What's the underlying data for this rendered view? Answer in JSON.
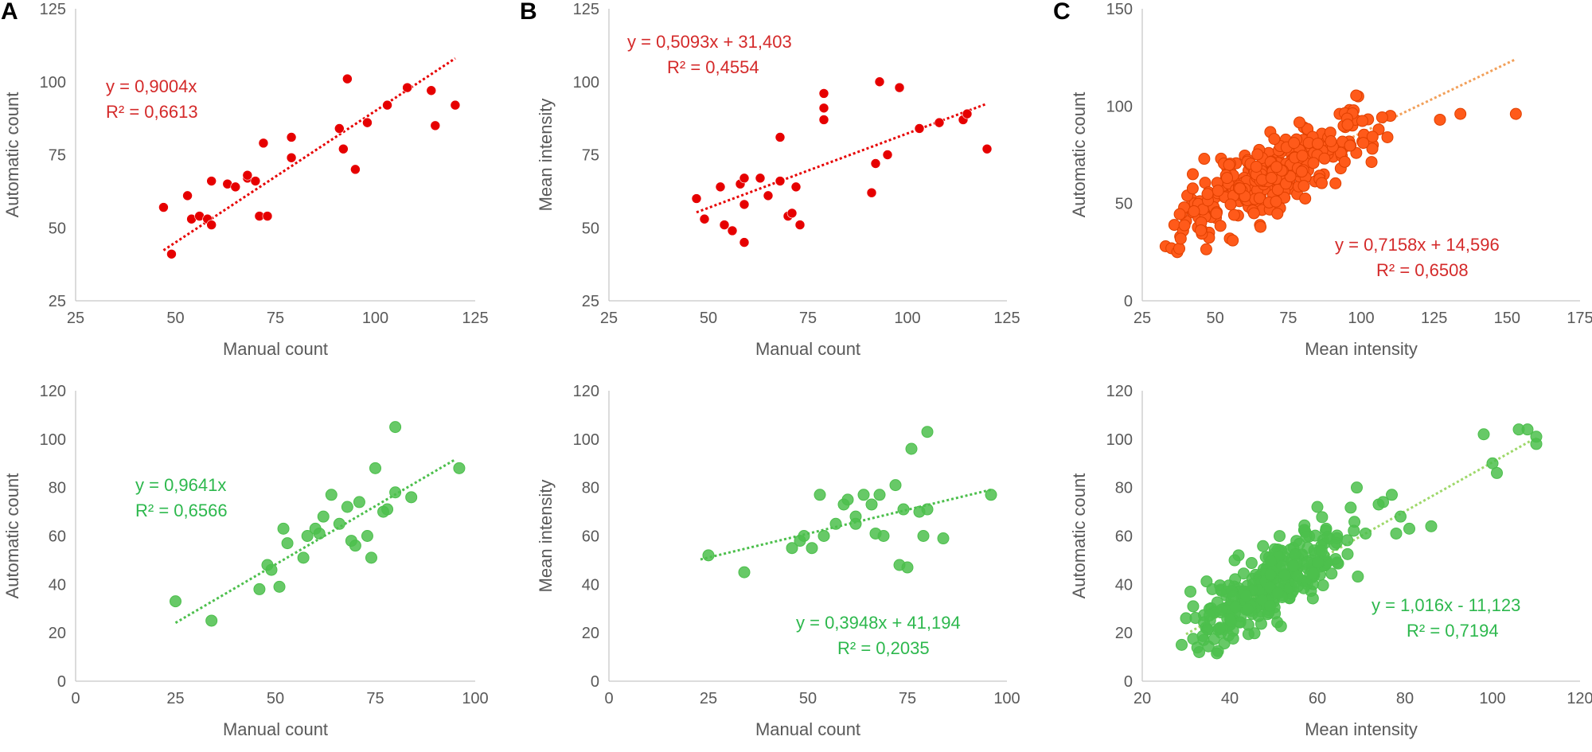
{
  "panel_letters": [
    "A",
    "B",
    "C"
  ],
  "colors": {
    "red": "#e60000",
    "red_text": "#d42a2a",
    "green": "#4cbf4c",
    "green_text": "#2db84d",
    "orange": "#ff5a1a",
    "orange_edge": "#e04000",
    "orange_trend": "#f2a05a",
    "green_trend": "#9ed86a",
    "axis": "#c8c8c8",
    "tick_text": "#595959"
  },
  "chart_data": [
    {
      "type": "scatter",
      "panel": "A",
      "row": "top",
      "xlabel": "Manual count",
      "ylabel": "Automatic count",
      "xlim": [
        25,
        125
      ],
      "ylim": [
        25,
        125
      ],
      "xticks": [
        "25",
        "50",
        "75",
        "100",
        "125"
      ],
      "yticks": [
        "25",
        "50",
        "75",
        "100",
        "125"
      ],
      "color": "red",
      "trend_color": "red",
      "text_color": "red_text",
      "equation": "y = 0,9004x",
      "r2": "R² = 0,6613",
      "trendline": [
        [
          47,
          42.3
        ],
        [
          120,
          108.0
        ]
      ],
      "points": [
        [
          47,
          57
        ],
        [
          49,
          41
        ],
        [
          53,
          61
        ],
        [
          54,
          53
        ],
        [
          56,
          54
        ],
        [
          58,
          53
        ],
        [
          59,
          51
        ],
        [
          59,
          66
        ],
        [
          63,
          65
        ],
        [
          65,
          64
        ],
        [
          68,
          67
        ],
        [
          68,
          68
        ],
        [
          70,
          66
        ],
        [
          71,
          54
        ],
        [
          72,
          79
        ],
        [
          73,
          54
        ],
        [
          79,
          81
        ],
        [
          79,
          74
        ],
        [
          91,
          84
        ],
        [
          92,
          77
        ],
        [
          93,
          101
        ],
        [
          95,
          70
        ],
        [
          98,
          86
        ],
        [
          103,
          92
        ],
        [
          108,
          98
        ],
        [
          114,
          97
        ],
        [
          115,
          85
        ],
        [
          120,
          92
        ]
      ]
    },
    {
      "type": "scatter",
      "panel": "B",
      "row": "top",
      "xlabel": "Manual count",
      "ylabel": "Mean intensity",
      "xlim": [
        25,
        125
      ],
      "ylim": [
        25,
        125
      ],
      "xticks": [
        "25",
        "50",
        "75",
        "100",
        "125"
      ],
      "yticks": [
        "25",
        "50",
        "75",
        "100",
        "125"
      ],
      "color": "red",
      "trend_color": "red",
      "text_color": "red_text",
      "equation": "y = 0,5093x + 31,403",
      "r2": "R² = 0,4554",
      "trendline": [
        [
          47,
          55.3
        ],
        [
          120,
          92.5
        ]
      ],
      "points": [
        [
          47,
          60
        ],
        [
          49,
          53
        ],
        [
          53,
          64
        ],
        [
          54,
          51
        ],
        [
          56,
          49
        ],
        [
          58,
          65
        ],
        [
          59,
          67
        ],
        [
          59,
          58
        ],
        [
          59,
          45
        ],
        [
          63,
          67
        ],
        [
          65,
          61
        ],
        [
          68,
          66
        ],
        [
          68,
          81
        ],
        [
          70,
          54
        ],
        [
          71,
          55
        ],
        [
          72,
          64
        ],
        [
          73,
          51
        ],
        [
          79,
          96
        ],
        [
          79,
          91
        ],
        [
          79,
          87
        ],
        [
          91,
          62
        ],
        [
          92,
          72
        ],
        [
          93,
          100
        ],
        [
          95,
          75
        ],
        [
          98,
          98
        ],
        [
          103,
          84
        ],
        [
          108,
          86
        ],
        [
          114,
          87
        ],
        [
          115,
          89
        ],
        [
          120,
          77
        ]
      ]
    },
    {
      "type": "scatter",
      "panel": "C",
      "row": "top",
      "xlabel": "Mean intensity",
      "ylabel": "Automatic count",
      "xlim": [
        25,
        175
      ],
      "ylim": [
        0,
        150
      ],
      "xticks": [
        "25",
        "50",
        "75",
        "100",
        "125",
        "150",
        "175"
      ],
      "yticks": [
        "0",
        "50",
        "100",
        "150"
      ],
      "color": "orange",
      "edge": "orange_edge",
      "trend_color": "orange_trend",
      "text_color": "red_text",
      "equation": "y = 0,7158x + 14,596",
      "r2": "R² = 0,6508",
      "trendline": [
        [
          35,
          39.7
        ],
        [
          153,
          124.1
        ]
      ],
      "cluster": {
        "n": 330,
        "seed": 17,
        "xmin": 34,
        "xmax": 110,
        "xmode": 66,
        "slope": 0.7158,
        "intercept": 14.596,
        "sd": 8.5,
        "ymin": 25,
        "ymax": 108
      },
      "points": [
        [
          33,
          28
        ],
        [
          35,
          27
        ],
        [
          36,
          39
        ],
        [
          37,
          25
        ],
        [
          38,
          33
        ],
        [
          39,
          36
        ],
        [
          40,
          41
        ],
        [
          42,
          52
        ],
        [
          43,
          50
        ],
        [
          44,
          46
        ],
        [
          52,
          73
        ],
        [
          55,
          32
        ],
        [
          56,
          31
        ],
        [
          93,
          68
        ],
        [
          97,
          90
        ],
        [
          98,
          93
        ],
        [
          99,
          105
        ],
        [
          104,
          80
        ],
        [
          106,
          88
        ],
        [
          109,
          84
        ],
        [
          110,
          95
        ],
        [
          127,
          93
        ],
        [
          134,
          96
        ],
        [
          153,
          96
        ]
      ]
    },
    {
      "type": "scatter",
      "panel": "A",
      "row": "bottom",
      "xlabel": "Manual count",
      "ylabel": "Automatic count",
      "xlim": [
        0,
        100
      ],
      "ylim": [
        0,
        120
      ],
      "xticks": [
        "0",
        "25",
        "50",
        "75",
        "100"
      ],
      "yticks": [
        "0",
        "20",
        "40",
        "60",
        "80",
        "100",
        "120"
      ],
      "color": "green",
      "trend_color": "green",
      "text_color": "green_text",
      "equation": "y = 0,9641x",
      "r2": "R² = 0,6566",
      "trendline": [
        [
          25,
          24.1
        ],
        [
          95,
          91.6
        ]
      ],
      "points": [
        [
          25,
          33
        ],
        [
          34,
          25
        ],
        [
          46,
          38
        ],
        [
          48,
          48
        ],
        [
          49,
          46
        ],
        [
          51,
          39
        ],
        [
          52,
          63
        ],
        [
          53,
          57
        ],
        [
          57,
          51
        ],
        [
          58,
          60
        ],
        [
          60,
          63
        ],
        [
          61,
          61
        ],
        [
          62,
          68
        ],
        [
          64,
          77
        ],
        [
          66,
          65
        ],
        [
          68,
          72
        ],
        [
          69,
          58
        ],
        [
          70,
          56
        ],
        [
          71,
          74
        ],
        [
          73,
          60
        ],
        [
          74,
          51
        ],
        [
          75,
          88
        ],
        [
          77,
          70
        ],
        [
          78,
          71
        ],
        [
          80,
          105
        ],
        [
          80,
          78
        ],
        [
          84,
          76
        ],
        [
          96,
          88
        ]
      ]
    },
    {
      "type": "scatter",
      "panel": "B",
      "row": "bottom",
      "xlabel": "Manual count",
      "ylabel": "Mean intensity",
      "xlim": [
        0,
        100
      ],
      "ylim": [
        0,
        120
      ],
      "xticks": [
        "0",
        "25",
        "50",
        "75",
        "100"
      ],
      "yticks": [
        "0",
        "20",
        "40",
        "60",
        "80",
        "100",
        "120"
      ],
      "color": "green",
      "trend_color": "green",
      "text_color": "green_text",
      "equation": "y = 0,3948x + 41,194",
      "r2": "R² = 0,2035",
      "trendline": [
        [
          23,
          50.3
        ],
        [
          96,
          79.1
        ]
      ],
      "points": [
        [
          25,
          52
        ],
        [
          34,
          45
        ],
        [
          46,
          55
        ],
        [
          48,
          58
        ],
        [
          49,
          60
        ],
        [
          51,
          55
        ],
        [
          53,
          77
        ],
        [
          54,
          60
        ],
        [
          57,
          65
        ],
        [
          59,
          73
        ],
        [
          60,
          75
        ],
        [
          62,
          68
        ],
        [
          62,
          65
        ],
        [
          64,
          77
        ],
        [
          66,
          73
        ],
        [
          67,
          61
        ],
        [
          68,
          77
        ],
        [
          69,
          60
        ],
        [
          72,
          81
        ],
        [
          73,
          48
        ],
        [
          74,
          71
        ],
        [
          75,
          47
        ],
        [
          76,
          96
        ],
        [
          78,
          70
        ],
        [
          79,
          60
        ],
        [
          80,
          103
        ],
        [
          80,
          71
        ],
        [
          84,
          59
        ],
        [
          96,
          77
        ]
      ]
    },
    {
      "type": "scatter",
      "panel": "C",
      "row": "bottom",
      "xlabel": "Mean intensity",
      "ylabel": "Automatic count",
      "xlim": [
        20,
        120
      ],
      "ylim": [
        0,
        120
      ],
      "xticks": [
        "20",
        "40",
        "60",
        "80",
        "100",
        "120"
      ],
      "yticks": [
        "0",
        "20",
        "40",
        "60",
        "80",
        "100",
        "120"
      ],
      "color": "green",
      "edge": "green",
      "trend_color": "green_trend",
      "text_color": "green_text",
      "equation": "y = 1,016x - 11,123",
      "r2": "R² = 0,7194",
      "trendline": [
        [
          30,
          19.4
        ],
        [
          110,
          100.6
        ]
      ],
      "cluster": {
        "n": 300,
        "seed": 91,
        "xmin": 30,
        "xmax": 70,
        "xmode": 48,
        "slope": 1.016,
        "intercept": -11.123,
        "sd": 7.5,
        "ymin": 10,
        "ymax": 82
      },
      "points": [
        [
          29,
          15
        ],
        [
          30,
          26
        ],
        [
          31,
          37
        ],
        [
          33,
          12
        ],
        [
          34,
          17
        ],
        [
          36,
          38
        ],
        [
          38,
          20
        ],
        [
          42,
          52
        ],
        [
          60,
          72
        ],
        [
          69,
          80
        ],
        [
          71,
          61
        ],
        [
          74,
          73
        ],
        [
          75,
          74
        ],
        [
          77,
          77
        ],
        [
          78,
          61
        ],
        [
          79,
          68
        ],
        [
          81,
          63
        ],
        [
          86,
          64
        ],
        [
          98,
          102
        ],
        [
          100,
          90
        ],
        [
          101,
          86
        ],
        [
          106,
          104
        ],
        [
          108,
          104
        ],
        [
          110,
          101
        ],
        [
          110,
          98
        ]
      ]
    }
  ]
}
